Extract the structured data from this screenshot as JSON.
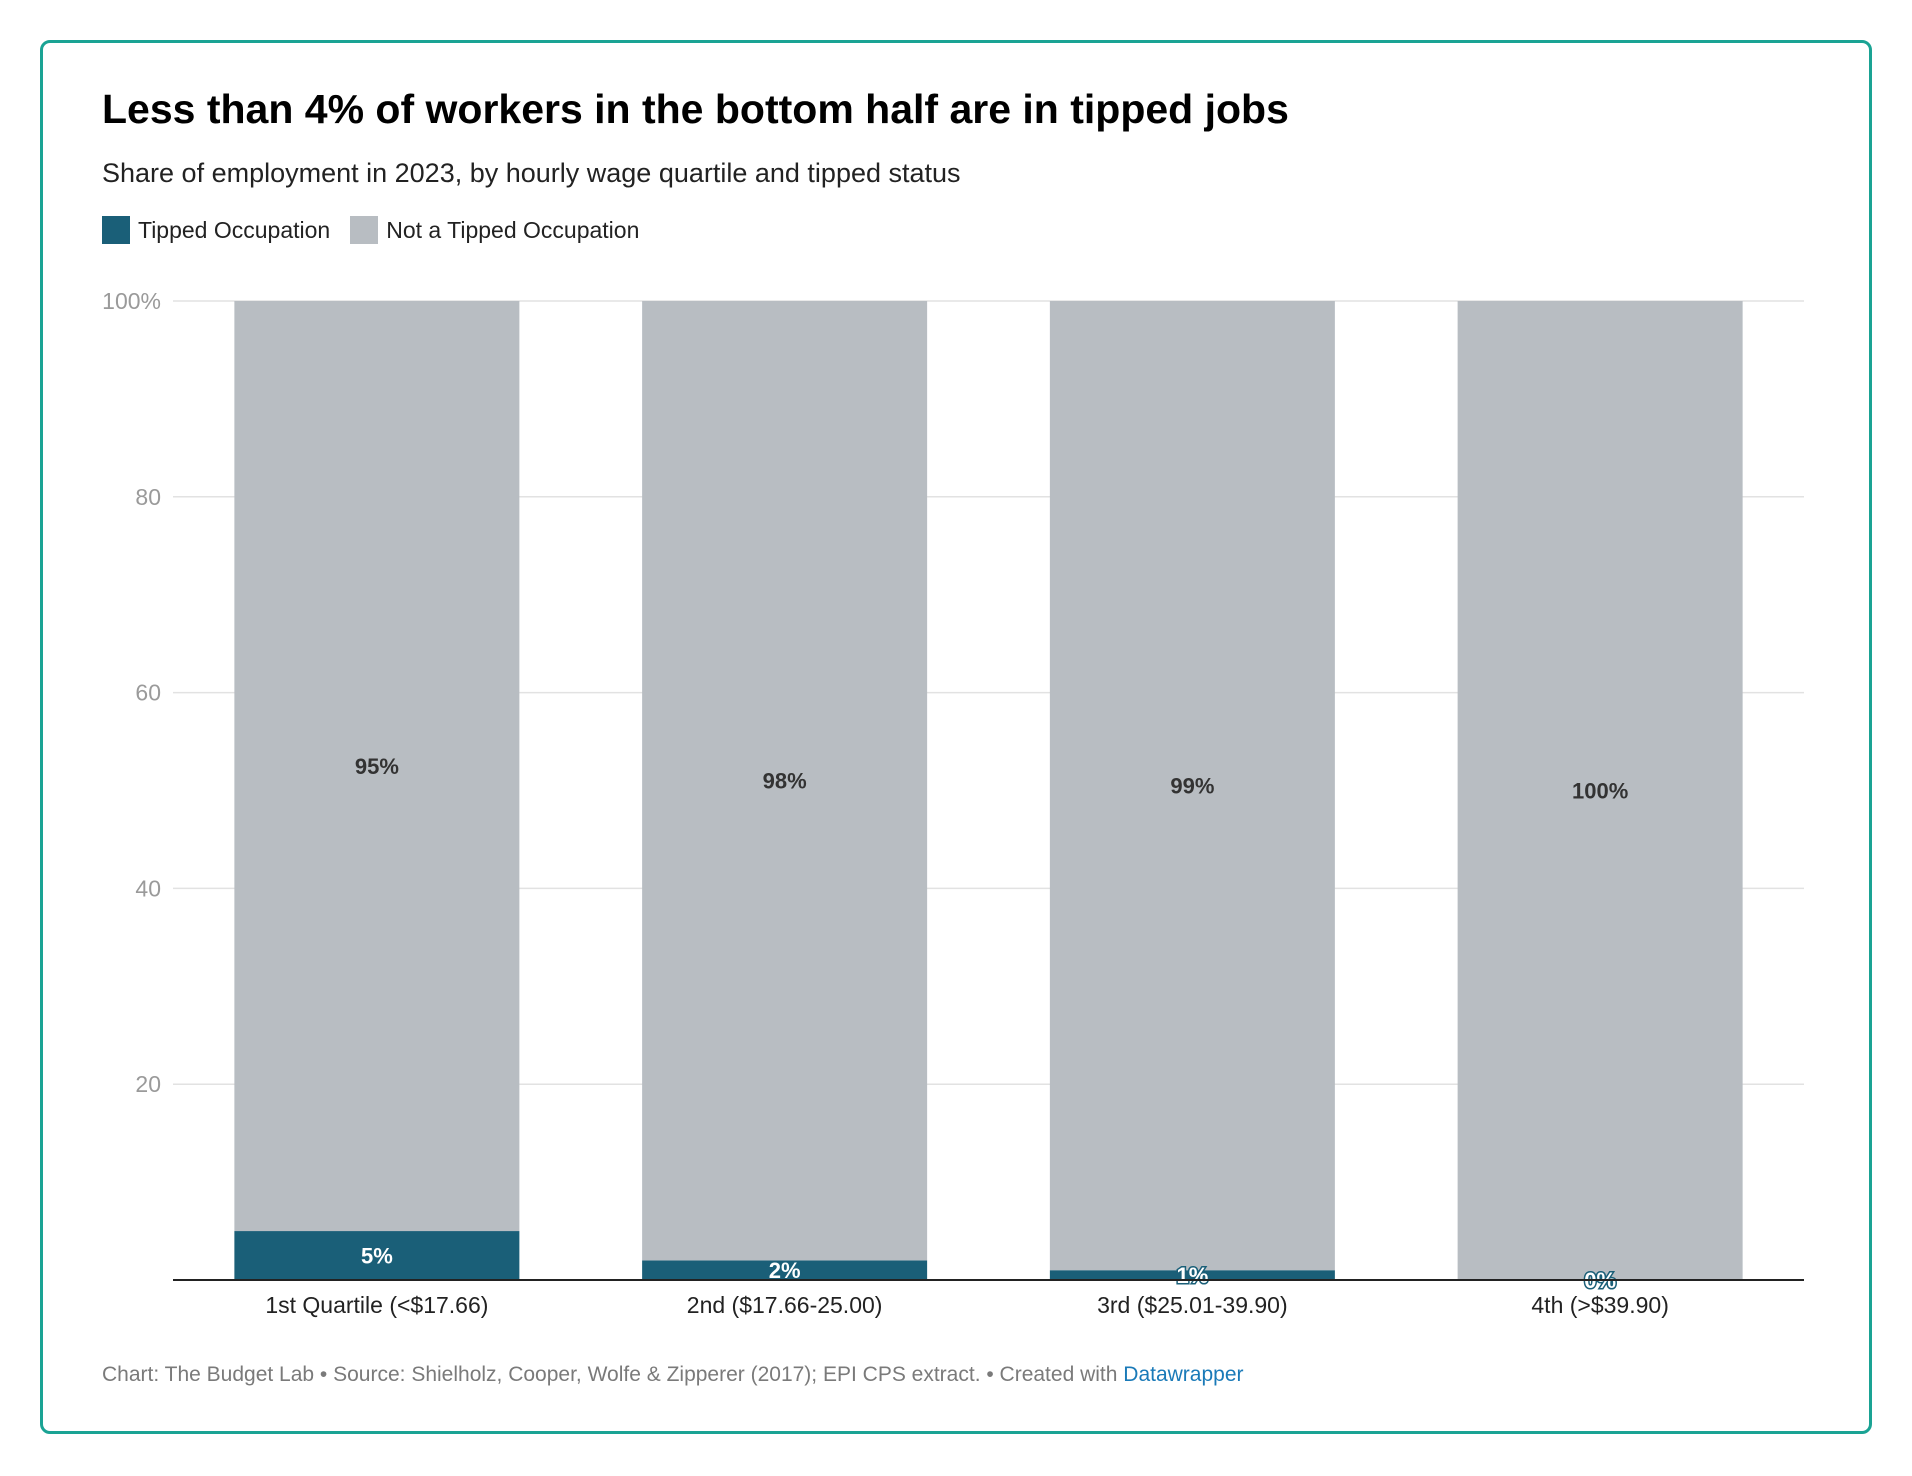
{
  "colors": {
    "border": "#1aa394",
    "tipped": "#1a5f78",
    "not_tipped": "#b8bdc2",
    "grid": "#e2e2e2",
    "axis_text": "#9a9a9a",
    "link": "#1a7ab8"
  },
  "chart_data": {
    "type": "bar",
    "stacked": true,
    "title": "Less than 4% of workers in the bottom half are in tipped jobs",
    "subtitle": "Share of employment in 2023, by hourly wage quartile and tipped status",
    "categories": [
      "1st Quartile (<$17.66)",
      "2nd ($17.66-25.00)",
      "3rd ($25.01-39.90)",
      "4th (>$39.90)"
    ],
    "series": [
      {
        "name": "Tipped Occupation",
        "values": [
          5,
          2,
          1,
          0
        ],
        "labels": [
          "5%",
          "2%",
          "1%",
          "0%"
        ]
      },
      {
        "name": "Not a Tipped Occupation",
        "values": [
          95,
          98,
          99,
          100
        ],
        "labels": [
          "95%",
          "98%",
          "99%",
          "100%"
        ]
      }
    ],
    "ylim": [
      0,
      100
    ],
    "yticks": [
      20,
      40,
      60,
      80,
      100
    ],
    "ytick_labels": [
      "20",
      "40",
      "60",
      "80",
      "100%"
    ],
    "grid": true,
    "legend_position": "top-left"
  },
  "footer": {
    "text": "Chart: The Budget Lab • Source: Shielholz, Cooper, Wolfe & Zipperer (2017); EPI CPS extract. • Created with ",
    "link": "Datawrapper"
  }
}
